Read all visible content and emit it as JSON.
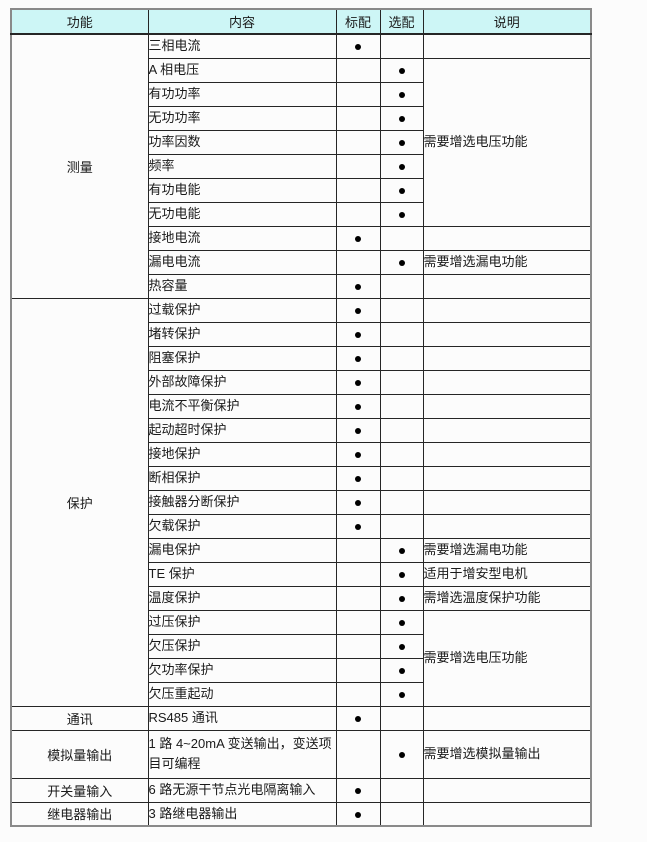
{
  "page": {
    "background": "#fcfcfc"
  },
  "table": {
    "headers": [
      "功能",
      "内容",
      "标配",
      "选配",
      "说明"
    ],
    "marker": {
      "icon": "included-dot-icon",
      "glyph": "●",
      "color": "#000000"
    },
    "colors": {
      "header_bg": "#cdf6f6",
      "grid_line": "#262626",
      "outer_frame": "#8a8a8a",
      "text": "#1a1a1a"
    },
    "sections": [
      {
        "function": "测量",
        "rows": [
          {
            "content": "三相电流",
            "std": true,
            "opt": false,
            "note": "",
            "noteSpan": 1
          },
          {
            "content": "A 相电压",
            "std": false,
            "opt": true,
            "note": "需要增选电压功能",
            "noteSpan": 7
          },
          {
            "content": "有功功率",
            "std": false,
            "opt": true,
            "note": "",
            "noteSpan": 0
          },
          {
            "content": "无功功率",
            "std": false,
            "opt": true,
            "note": "",
            "noteSpan": 0
          },
          {
            "content": "功率因数",
            "std": false,
            "opt": true,
            "note": "",
            "noteSpan": 0
          },
          {
            "content": "频率",
            "std": false,
            "opt": true,
            "note": "",
            "noteSpan": 0
          },
          {
            "content": "有功电能",
            "std": false,
            "opt": true,
            "note": "",
            "noteSpan": 0
          },
          {
            "content": "无功电能",
            "std": false,
            "opt": true,
            "note": "",
            "noteSpan": 0
          },
          {
            "content": "接地电流",
            "std": true,
            "opt": false,
            "note": "",
            "noteSpan": 1
          },
          {
            "content": "漏电电流",
            "std": false,
            "opt": true,
            "note": "需要增选漏电功能",
            "noteSpan": 1
          },
          {
            "content": "热容量",
            "std": true,
            "opt": false,
            "note": "",
            "noteSpan": 1
          }
        ]
      },
      {
        "function": "保护",
        "rows": [
          {
            "content": "过载保护",
            "std": true,
            "opt": false,
            "note": "",
            "noteSpan": 1
          },
          {
            "content": "堵转保护",
            "std": true,
            "opt": false,
            "note": "",
            "noteSpan": 1
          },
          {
            "content": "阻塞保护",
            "std": true,
            "opt": false,
            "note": "",
            "noteSpan": 1
          },
          {
            "content": "外部故障保护",
            "std": true,
            "opt": false,
            "note": "",
            "noteSpan": 1
          },
          {
            "content": "电流不平衡保护",
            "std": true,
            "opt": false,
            "note": "",
            "noteSpan": 1
          },
          {
            "content": "起动超时保护",
            "std": true,
            "opt": false,
            "note": "",
            "noteSpan": 1
          },
          {
            "content": "接地保护",
            "std": true,
            "opt": false,
            "note": "",
            "noteSpan": 1
          },
          {
            "content": "断相保护",
            "std": true,
            "opt": false,
            "note": "",
            "noteSpan": 1
          },
          {
            "content": "接触器分断保护",
            "std": true,
            "opt": false,
            "note": "",
            "noteSpan": 1
          },
          {
            "content": "欠载保护",
            "std": true,
            "opt": false,
            "note": "",
            "noteSpan": 1
          },
          {
            "content": "漏电保护",
            "std": false,
            "opt": true,
            "note": "需要增选漏电功能",
            "noteSpan": 1
          },
          {
            "content": "TE 保护",
            "std": false,
            "opt": true,
            "note": "适用于增安型电机",
            "noteSpan": 1
          },
          {
            "content": "温度保护",
            "std": false,
            "opt": true,
            "note": "需增选温度保护功能",
            "noteSpan": 1
          },
          {
            "content": "过压保护",
            "std": false,
            "opt": true,
            "note": "需要增选电压功能",
            "noteSpan": 4
          },
          {
            "content": "欠压保护",
            "std": false,
            "opt": true,
            "note": "",
            "noteSpan": 0
          },
          {
            "content": "欠功率保护",
            "std": false,
            "opt": true,
            "note": "",
            "noteSpan": 0
          },
          {
            "content": "欠压重起动",
            "std": false,
            "opt": true,
            "note": "",
            "noteSpan": 0
          }
        ]
      },
      {
        "function": "通讯",
        "rows": [
          {
            "content": "RS485 通讯",
            "std": true,
            "opt": false,
            "note": "",
            "noteSpan": 1
          }
        ]
      },
      {
        "function": "模拟量输出",
        "rows": [
          {
            "content": "1 路 4~20mA 变送输出，变送项目可编程",
            "std": false,
            "opt": true,
            "note": "需要增选模拟量输出",
            "noteSpan": 1,
            "tall": true
          }
        ]
      },
      {
        "function": "开关量输入",
        "rows": [
          {
            "content": "6 路无源干节点光电隔离输入",
            "std": true,
            "opt": false,
            "note": "",
            "noteSpan": 1
          }
        ]
      },
      {
        "function": "继电器输出",
        "rows": [
          {
            "content": "3 路继电器输出",
            "std": true,
            "opt": false,
            "note": "",
            "noteSpan": 1
          }
        ]
      }
    ]
  }
}
